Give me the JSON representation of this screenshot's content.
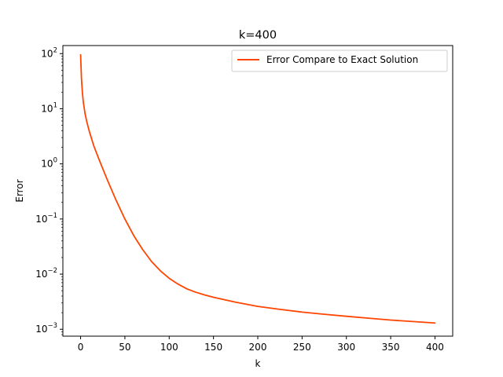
{
  "chart_data": {
    "type": "line",
    "title": "k=400",
    "xlabel": "k",
    "ylabel": "Error",
    "yscale": "log",
    "xlim": [
      -20,
      420
    ],
    "ylim": [
      0.00075,
      140
    ],
    "grid": false,
    "legend_position": "top-right",
    "x_ticks": [
      0,
      50,
      100,
      150,
      200,
      250,
      300,
      350,
      400
    ],
    "x_tick_labels": [
      "0",
      "50",
      "100",
      "150",
      "200",
      "250",
      "300",
      "350",
      "400"
    ],
    "y_ticks": [
      0.001,
      0.01,
      0.1,
      1,
      10,
      100
    ],
    "y_tick_labels": [
      {
        "base": "10",
        "exp": "−3"
      },
      {
        "base": "10",
        "exp": "−2"
      },
      {
        "base": "10",
        "exp": "−1"
      },
      {
        "base": "10",
        "exp": "0"
      },
      {
        "base": "10",
        "exp": "1"
      },
      {
        "base": "10",
        "exp": "2"
      }
    ],
    "series": [
      {
        "name": "Error Compare to Exact Solution",
        "color": "#ff4500",
        "x": [
          0,
          1,
          2,
          3,
          5,
          7,
          10,
          15,
          20,
          25,
          30,
          40,
          50,
          60,
          70,
          80,
          90,
          100,
          110,
          120,
          130,
          140,
          150,
          175,
          200,
          225,
          250,
          275,
          300,
          325,
          350,
          375,
          400
        ],
        "y": [
          95,
          35,
          20,
          13.5,
          8.2,
          5.8,
          3.8,
          2.1,
          1.3,
          0.82,
          0.52,
          0.22,
          0.1,
          0.05,
          0.028,
          0.017,
          0.0115,
          0.0084,
          0.0066,
          0.0054,
          0.0047,
          0.0042,
          0.0038,
          0.0031,
          0.0026,
          0.0023,
          0.00205,
          0.00187,
          0.00172,
          0.00159,
          0.00147,
          0.00138,
          0.0013
        ]
      }
    ]
  }
}
